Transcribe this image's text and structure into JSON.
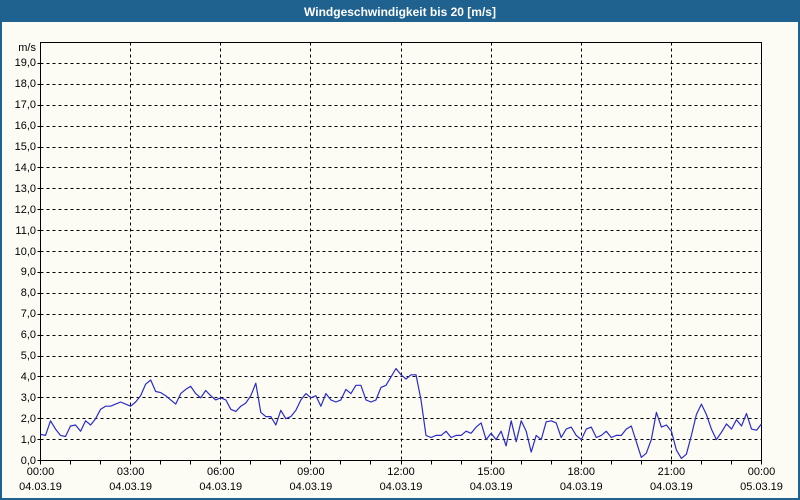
{
  "window": {
    "title": "Windgeschwindigkeit bis 20 [m/s]"
  },
  "chart_data": {
    "type": "line",
    "title": "Windgeschwindigkeit bis 20 [m/s]",
    "ylabel": "m/s",
    "unit_label": "m/s",
    "ylim": [
      0,
      20
    ],
    "grid": "dashed",
    "legend": "none",
    "y_tick_values": [
      19,
      18,
      17,
      16,
      15,
      14,
      13,
      12,
      11,
      10,
      9,
      8,
      7,
      6,
      5,
      4,
      3,
      2,
      1,
      0
    ],
    "y_tick_labels": [
      "19,0",
      "18,0",
      "17,0",
      "16,0",
      "15,0",
      "14,0",
      "13,0",
      "12,0",
      "11,0",
      "10,0",
      "9,0",
      "8,0",
      "7,0",
      "6,0",
      "5,0",
      "4,0",
      "3,0",
      "2,0",
      "1,0",
      "0,0"
    ],
    "x_range_hours": [
      0,
      24
    ],
    "x_minor_tick_hours": 1,
    "x_tick_hours": [
      0,
      3,
      6,
      9,
      12,
      15,
      18,
      21,
      24
    ],
    "x_tick_times": [
      "00:00",
      "03:00",
      "06:00",
      "09:00",
      "12:00",
      "15:00",
      "18:00",
      "21:00",
      "00:00"
    ],
    "x_tick_dates": [
      "04.03.19",
      "04.03.19",
      "04.03.19",
      "04.03.19",
      "04.03.19",
      "04.03.19",
      "04.03.19",
      "04.03.19",
      "05.03.19"
    ],
    "series": [
      {
        "color": "#2B2BC8",
        "step_minutes": 10,
        "values": [
          1.25,
          1.2,
          1.9,
          1.5,
          1.2,
          1.15,
          1.65,
          1.7,
          1.4,
          1.9,
          1.7,
          2.0,
          2.45,
          2.6,
          2.6,
          2.7,
          2.8,
          2.7,
          2.6,
          2.8,
          3.1,
          3.65,
          3.85,
          3.3,
          3.25,
          3.1,
          2.9,
          2.7,
          3.2,
          3.4,
          3.55,
          3.2,
          3.0,
          3.35,
          3.1,
          2.9,
          3.0,
          2.9,
          2.45,
          2.35,
          2.6,
          2.75,
          3.1,
          3.7,
          2.3,
          2.1,
          2.1,
          1.7,
          2.4,
          2.0,
          2.1,
          2.4,
          2.9,
          3.2,
          3.0,
          3.1,
          2.6,
          3.2,
          2.9,
          2.8,
          2.9,
          3.4,
          3.2,
          3.6,
          3.6,
          2.9,
          2.8,
          2.9,
          3.5,
          3.6,
          4.0,
          4.4,
          4.1,
          3.9,
          4.1,
          4.1,
          2.9,
          1.2,
          1.1,
          1.2,
          1.2,
          1.4,
          1.1,
          1.2,
          1.2,
          1.4,
          1.3,
          1.6,
          1.8,
          1.0,
          1.3,
          1.0,
          1.4,
          0.7,
          1.9,
          0.9,
          1.9,
          1.4,
          0.4,
          1.2,
          1.0,
          1.85,
          1.9,
          1.8,
          1.1,
          1.5,
          1.6,
          1.2,
          1.0,
          1.5,
          1.6,
          1.1,
          1.2,
          1.4,
          1.1,
          1.2,
          1.2,
          1.5,
          1.65,
          0.9,
          0.15,
          0.35,
          1.0,
          2.3,
          1.6,
          1.7,
          1.4,
          0.5,
          0.1,
          0.3,
          1.2,
          2.2,
          2.7,
          2.2,
          1.5,
          1.0,
          1.35,
          1.75,
          1.5,
          1.95,
          1.65,
          2.25,
          1.5,
          1.45,
          1.75
        ]
      }
    ],
    "colors": {
      "titlebar": "#1F618F",
      "background": "#FCFCF5",
      "frame": "#000000",
      "grid": "#000000",
      "line": "#2B2BC8"
    }
  }
}
